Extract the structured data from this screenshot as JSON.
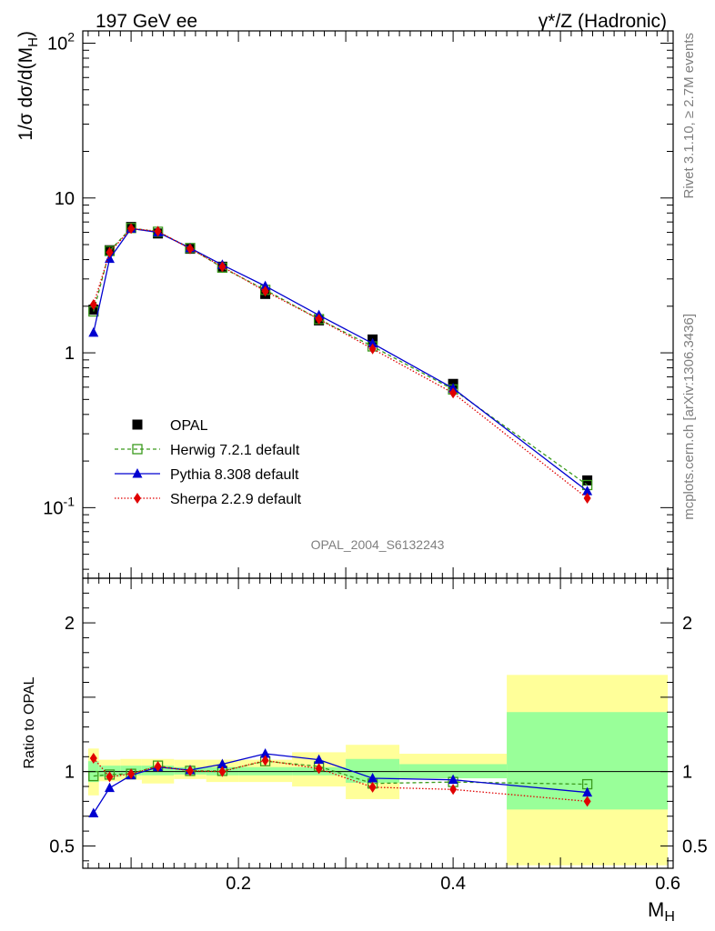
{
  "header": {
    "left": "197 GeV ee",
    "right": "γ*/Z (Hadronic)"
  },
  "side_labels": {
    "rivet": "Rivet 3.1.10, ≥ 2.7M events",
    "mcplots": "mcplots.cern.ch [arXiv:1306.3436]"
  },
  "analysis_tag": "OPAL_2004_S6132243",
  "colors": {
    "data": "#000000",
    "herwig": "#3a9a1c",
    "pythia": "#0000d0",
    "sherpa": "#e00000",
    "band_inner": "#99ff99",
    "band_outer": "#ffff99"
  },
  "chart_data": [
    {
      "type": "scatter",
      "name": "main",
      "ylabel": "1/σ dσ/d(M_H)",
      "yscale": "log",
      "xlim": [
        0.055,
        0.605
      ],
      "ylim": [
        0.035,
        120
      ],
      "ytick_labels": [
        "10^-1",
        "1",
        "10",
        "10^2"
      ],
      "ytick_values": [
        0.1,
        1,
        10,
        100
      ],
      "x": [
        0.065,
        0.08,
        0.1,
        0.125,
        0.155,
        0.185,
        0.225,
        0.275,
        0.325,
        0.4,
        0.525
      ],
      "x_bin_edges": [
        0.06,
        0.07,
        0.09,
        0.11,
        0.14,
        0.17,
        0.2,
        0.25,
        0.3,
        0.35,
        0.45,
        0.6
      ],
      "legend": {
        "placement": "lower-left"
      },
      "series": [
        {
          "name": "OPAL",
          "style": "data",
          "values": [
            1.9,
            4.6,
            6.5,
            5.9,
            4.7,
            3.6,
            2.4,
            1.62,
            1.22,
            0.63,
            0.15
          ]
        },
        {
          "name": "Herwig 7.2.1 default",
          "style": "herwig",
          "values": [
            1.85,
            4.55,
            6.4,
            6.05,
            4.75,
            3.55,
            2.55,
            1.65,
            1.1,
            0.58,
            0.14
          ]
        },
        {
          "name": "Pythia 8.308 default",
          "style": "pythia",
          "values": [
            1.35,
            4.05,
            6.35,
            6.0,
            4.75,
            3.7,
            2.7,
            1.75,
            1.15,
            0.59,
            0.128
          ]
        },
        {
          "name": "Sherpa 2.2.9 default",
          "style": "sherpa",
          "values": [
            2.05,
            4.45,
            6.35,
            6.1,
            4.7,
            3.6,
            2.5,
            1.65,
            1.06,
            0.55,
            0.115
          ]
        }
      ]
    },
    {
      "type": "line",
      "name": "ratio",
      "ylabel": "Ratio to OPAL",
      "xlabel": "M_H",
      "xlim": [
        0.055,
        0.605
      ],
      "ylim": [
        0.35,
        2.3
      ],
      "xtick_labels": [
        "0.2",
        "0.4",
        "0.6"
      ],
      "xtick_values": [
        0.2,
        0.4,
        0.6
      ],
      "ytick_labels": [
        "0.5",
        "1",
        "2"
      ],
      "ytick_values": [
        0.5,
        1,
        2
      ],
      "x": [
        0.065,
        0.08,
        0.1,
        0.125,
        0.155,
        0.185,
        0.225,
        0.275,
        0.325,
        0.4,
        0.525
      ],
      "bands": {
        "x_edges": [
          0.06,
          0.07,
          0.09,
          0.11,
          0.14,
          0.17,
          0.2,
          0.25,
          0.3,
          0.35,
          0.45,
          0.6
        ],
        "inner_lo": [
          0.93,
          0.965,
          0.975,
          0.975,
          0.98,
          0.975,
          0.975,
          0.975,
          0.925,
          0.955,
          0.745
        ],
        "inner_hi": [
          1.07,
          1.04,
          1.04,
          1.04,
          1.03,
          1.03,
          1.03,
          1.03,
          1.085,
          1.05,
          1.4
        ],
        "outer_lo": [
          0.84,
          0.935,
          0.945,
          0.92,
          0.95,
          0.93,
          0.93,
          0.9,
          0.815,
          0.955,
          0.37
        ],
        "outer_hi": [
          1.155,
          1.08,
          1.085,
          1.085,
          1.08,
          1.08,
          1.08,
          1.13,
          1.18,
          1.12,
          1.65
        ]
      },
      "series": [
        {
          "name": "Herwig 7.2.1 default",
          "style": "herwig",
          "values": [
            0.97,
            0.98,
            0.985,
            1.04,
            1.005,
            1.005,
            1.07,
            1.035,
            0.92,
            0.93,
            0.915
          ]
        },
        {
          "name": "Pythia 8.308 default",
          "style": "pythia",
          "values": [
            0.72,
            0.89,
            0.975,
            1.03,
            1.01,
            1.05,
            1.12,
            1.08,
            0.955,
            0.945,
            0.86
          ]
        },
        {
          "name": "Sherpa 2.2.9 default",
          "style": "sherpa",
          "values": [
            1.09,
            0.965,
            0.985,
            1.035,
            1.005,
            1.0,
            1.075,
            1.02,
            0.895,
            0.88,
            0.8
          ]
        }
      ]
    }
  ]
}
